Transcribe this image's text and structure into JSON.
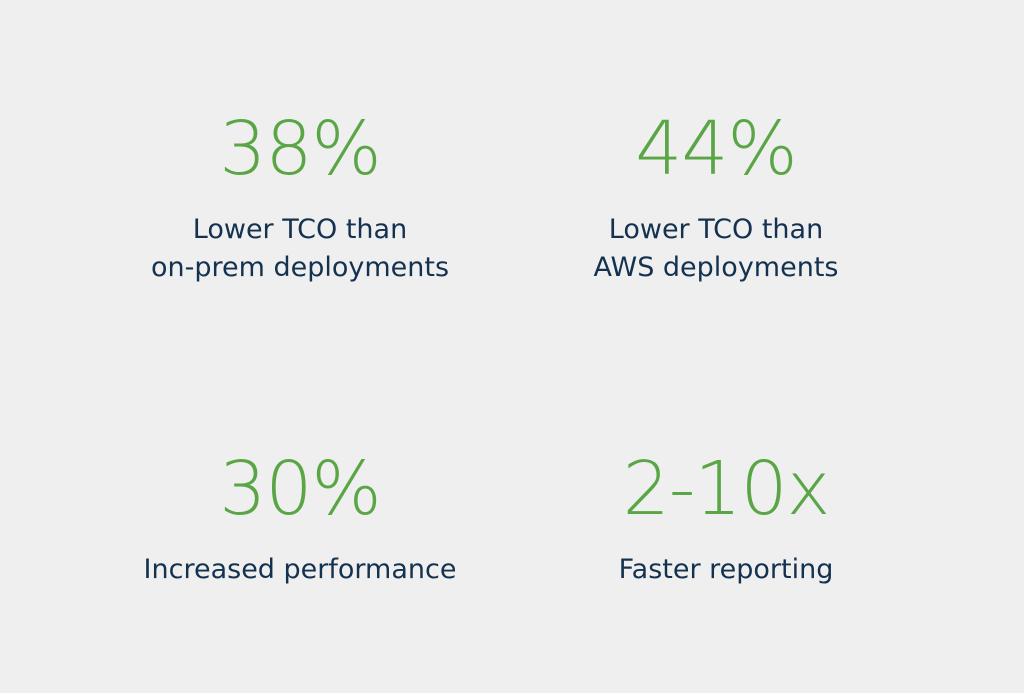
{
  "stats": [
    {
      "value": "38%",
      "label_lines": [
        "Lower TCO than",
        "on-prem deployments"
      ]
    },
    {
      "value": "44%",
      "label_lines": [
        "Lower TCO than",
        "AWS deployments"
      ]
    },
    {
      "value": "30%",
      "label_lines": [
        "Increased performance"
      ]
    },
    {
      "value": "2-10x",
      "label_lines": [
        "Faster reporting"
      ]
    }
  ],
  "colors": {
    "background": "#efefef",
    "value": "#5aa646",
    "label": "#14324f"
  }
}
